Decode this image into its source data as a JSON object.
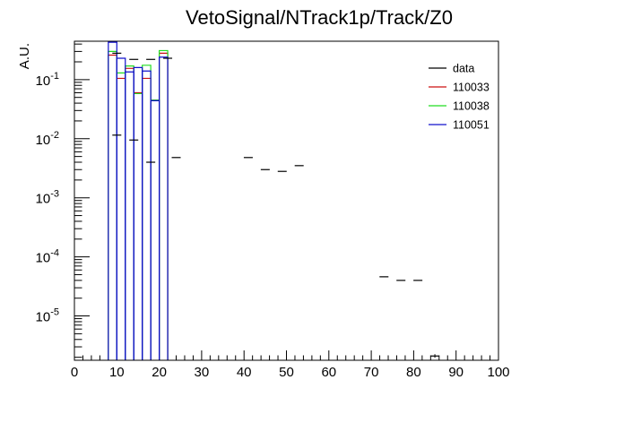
{
  "chart_data": {
    "type": "histogram",
    "title": "VetoSignal/NTrack1p/Track/Z0",
    "xlabel": "",
    "ylabel": "A.U.",
    "xlim": [
      0,
      100
    ],
    "ylim_log10": [
      -5.75,
      -0.35
    ],
    "yscale": "log",
    "grid": false,
    "legend_position": "top-right",
    "x_ticks": [
      "0",
      "10",
      "20",
      "30",
      "40",
      "50",
      "60",
      "70",
      "80",
      "90",
      "100"
    ],
    "y_ticks": [
      {
        "base": "10",
        "exp": "-1"
      },
      {
        "base": "10",
        "exp": "-2"
      },
      {
        "base": "10",
        "exp": "-3"
      },
      {
        "base": "10",
        "exp": "-4"
      },
      {
        "base": "10",
        "exp": "-5"
      }
    ],
    "series": [
      {
        "name": "data",
        "color": "#000000",
        "style": "points",
        "points": [
          {
            "x": 10,
            "y": 0.28
          },
          {
            "x": 10,
            "y": 0.0115
          },
          {
            "x": 14,
            "y": 0.22
          },
          {
            "x": 14,
            "y": 0.0095
          },
          {
            "x": 18,
            "y": 0.22
          },
          {
            "x": 18,
            "y": 0.004
          },
          {
            "x": 22,
            "y": 0.23
          },
          {
            "x": 24,
            "y": 0.0048
          },
          {
            "x": 41,
            "y": 0.0048
          },
          {
            "x": 45,
            "y": 0.003
          },
          {
            "x": 49,
            "y": 0.0028
          },
          {
            "x": 53,
            "y": 0.0035
          },
          {
            "x": 73,
            "y": 4.6e-05
          },
          {
            "x": 77,
            "y": 4e-05
          },
          {
            "x": 81,
            "y": 4e-05
          },
          {
            "x": 85,
            "y": 2.1e-06
          }
        ]
      },
      {
        "name": "110033",
        "color": "#cc1111",
        "style": "step",
        "bins": [
          {
            "x0": 8,
            "x1": 10,
            "y": 0.26
          },
          {
            "x0": 10,
            "x1": 12,
            "y": 0.105
          },
          {
            "x0": 12,
            "x1": 14,
            "y": 0.155
          },
          {
            "x0": 14,
            "x1": 16,
            "y": 0.06
          },
          {
            "x0": 16,
            "x1": 18,
            "y": 0.105
          },
          {
            "x0": 18,
            "x1": 20,
            "y": 0.045
          },
          {
            "x0": 20,
            "x1": 22,
            "y": 0.28
          }
        ]
      },
      {
        "name": "110038",
        "color": "#22dd22",
        "style": "step",
        "bins": [
          {
            "x0": 8,
            "x1": 10,
            "y": 0.3
          },
          {
            "x0": 10,
            "x1": 12,
            "y": 0.13
          },
          {
            "x0": 12,
            "x1": 14,
            "y": 0.17
          },
          {
            "x0": 14,
            "x1": 16,
            "y": 0.058
          },
          {
            "x0": 16,
            "x1": 18,
            "y": 0.175
          },
          {
            "x0": 18,
            "x1": 20,
            "y": 0.045
          },
          {
            "x0": 20,
            "x1": 22,
            "y": 0.31
          }
        ]
      },
      {
        "name": "110051",
        "color": "#1111cc",
        "style": "step",
        "bins": [
          {
            "x0": 8,
            "x1": 10,
            "y": 0.43
          },
          {
            "x0": 10,
            "x1": 12,
            "y": 0.23
          },
          {
            "x0": 12,
            "x1": 14,
            "y": 0.135
          },
          {
            "x0": 14,
            "x1": 16,
            "y": 0.16
          },
          {
            "x0": 16,
            "x1": 18,
            "y": 0.14
          },
          {
            "x0": 18,
            "x1": 20,
            "y": 0.044
          },
          {
            "x0": 20,
            "x1": 22,
            "y": 0.24
          }
        ]
      }
    ]
  }
}
